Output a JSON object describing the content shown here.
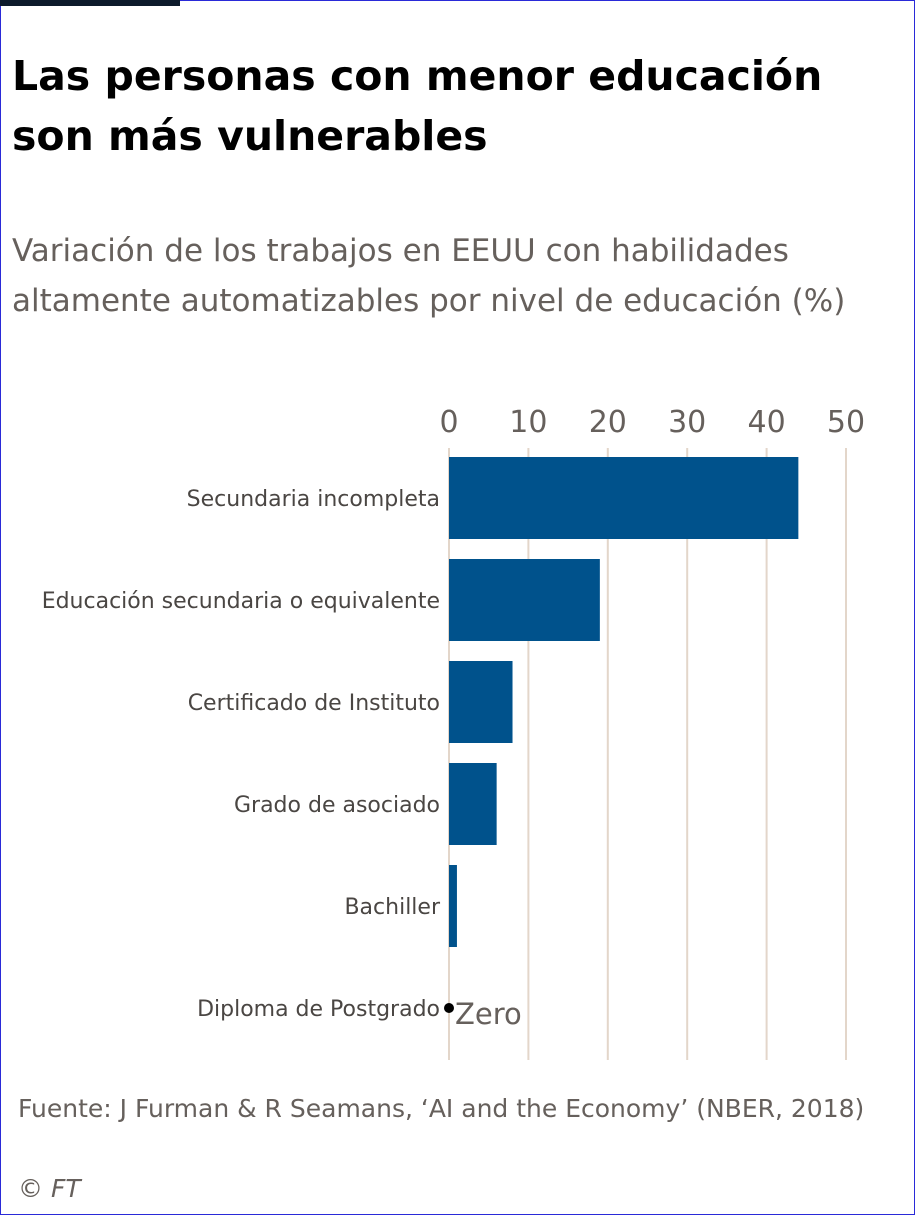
{
  "title": "Las personas con menor educación son más vulnerables",
  "subtitle": "Variación de los trabajos en EEUU con habilidades altamente automatizables por nivel de educación (%)",
  "source": "Fuente: J Furman & R Seamans, ‘AI and the Economy’ (NBER, 2018)",
  "copyright": {
    "symbol": "©",
    "brand": "FT"
  },
  "colors": {
    "bar": "#00528c",
    "grid": "#e3d6ca",
    "tick_text": "#66605c",
    "label_text": "#4a4643"
  },
  "chart_data": {
    "type": "bar",
    "orientation": "horizontal",
    "categories": [
      "Secundaria incompleta",
      "Educación secundaria o equivalente",
      "Certificado de Instituto",
      "Grado de asociado",
      "Bachiller",
      "Diploma de Postgrado"
    ],
    "values": [
      44,
      19,
      8,
      6,
      1,
      0
    ],
    "xlim": [
      0,
      50
    ],
    "xticks": [
      0,
      10,
      20,
      30,
      40,
      50
    ],
    "tick_position": "top",
    "grid": true,
    "annotations": [
      {
        "category": "Diploma de Postgrado",
        "text": "Zero"
      }
    ]
  }
}
